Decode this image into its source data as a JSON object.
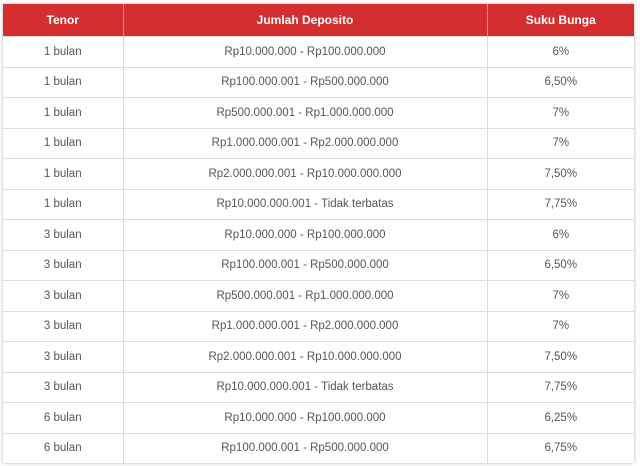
{
  "table": {
    "header_color": "#d32f2f",
    "headers": [
      "Tenor",
      "Jumlah Deposito",
      "Suku Bunga"
    ],
    "rows": [
      [
        "1 bulan",
        "Rp10.000.000 - Rp100.000.000",
        "6%"
      ],
      [
        "1 bulan",
        "Rp100.000.001 - Rp500.000.000",
        "6,50%"
      ],
      [
        "1 bulan",
        "Rp500.000.001 - Rp1.000.000.000",
        "7%"
      ],
      [
        "1 bulan",
        "Rp1.000.000.001 - Rp2.000.000.000",
        "7%"
      ],
      [
        "1 bulan",
        "Rp2.000.000.001 - Rp10.000.000.000",
        "7,50%"
      ],
      [
        "1 bulan",
        "Rp10.000.000.001 - Tidak terbatas",
        "7,75%"
      ],
      [
        "3 bulan",
        "Rp10.000.000 - Rp100.000.000",
        "6%"
      ],
      [
        "3 bulan",
        "Rp100.000.001 - Rp500.000.000",
        "6,50%"
      ],
      [
        "3 bulan",
        "Rp500.000.001 - Rp1.000.000.000",
        "7%"
      ],
      [
        "3 bulan",
        "Rp1.000.000.001 - Rp2.000.000.000",
        "7%"
      ],
      [
        "3 bulan",
        "Rp2.000.000.001 - Rp10.000.000.000",
        "7,50%"
      ],
      [
        "3 bulan",
        "Rp10.000.000.001 - Tidak terbatas",
        "7,75%"
      ],
      [
        "6 bulan",
        "Rp10.000.000 - Rp100.000.000",
        "6,25%"
      ],
      [
        "6 bulan",
        "Rp100.000.001 - Rp500.000.000",
        "6,75%"
      ]
    ]
  }
}
